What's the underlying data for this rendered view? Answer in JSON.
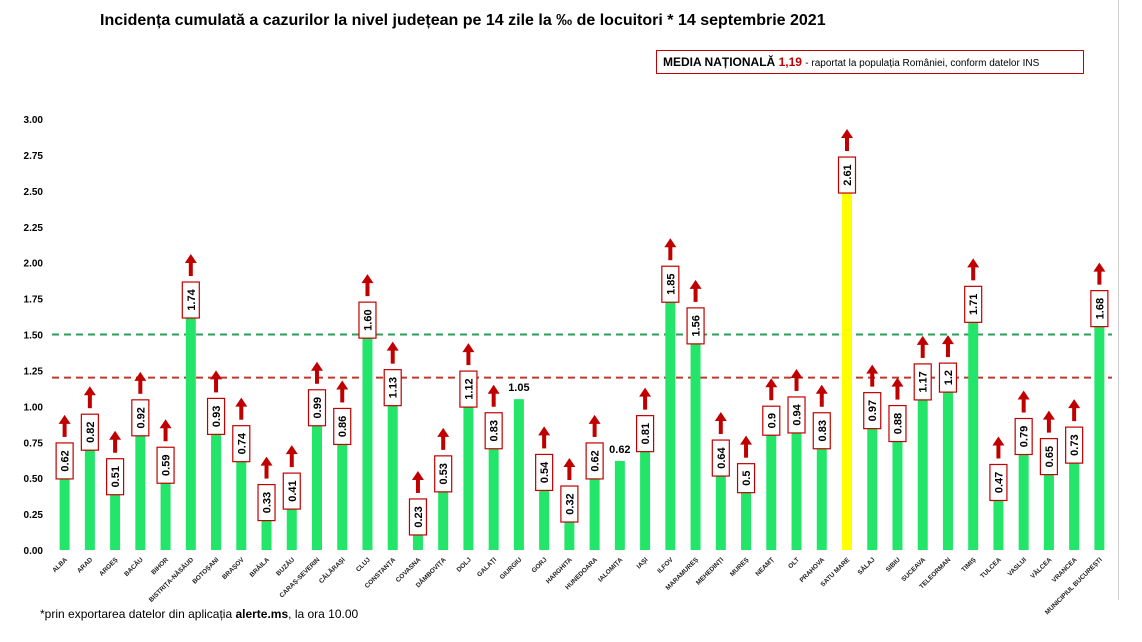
{
  "title": {
    "main": "Incidența cumulată a cazurilor la nivel județean pe 14 zile la ‰ de locuitori *",
    "date": "14 septembrie 2021"
  },
  "media_box": {
    "label": "MEDIA NAȚIONALĂ",
    "value": "1,19",
    "rest": "- raportat la populația României, conform datelor INS"
  },
  "footnote": {
    "prefix": "*prin exportarea datelor din aplicația ",
    "app": "alerte.ms",
    "suffix": ", la ora 10.00"
  },
  "colors": {
    "bar": "#22e56a",
    "highlight": "#ffff00",
    "arrow": "#c00000",
    "label_border": "#c00000",
    "green_line": "#2e9e5b",
    "red_line": "#c0392b"
  },
  "chart_data": {
    "type": "bar",
    "ylim": [
      0,
      3.0
    ],
    "yticks": [
      "0.00",
      "0.25",
      "0.50",
      "0.75",
      "1.00",
      "1.25",
      "1.50",
      "1.75",
      "2.00",
      "2.25",
      "2.50",
      "2.75",
      "3.00"
    ],
    "reference_lines": [
      {
        "value": 1.5,
        "style": "dashed",
        "color": "green"
      },
      {
        "value": 1.2,
        "style": "dashed",
        "color": "red"
      }
    ],
    "highlight_category": "SATU MARE",
    "grid": false,
    "legend": "none",
    "categories": [
      "ALBA",
      "ARAD",
      "ARGEȘ",
      "BACĂU",
      "BIHOR",
      "BISTRIȚA-NĂSĂUD",
      "BOTOȘANI",
      "BRAȘOV",
      "BRĂILA",
      "BUZĂU",
      "CARAȘ-SEVERIN",
      "CĂLĂRAȘI",
      "CLUJ",
      "CONSTANȚA",
      "COVASNA",
      "DÂMBOVIȚA",
      "DOLJ",
      "GALAȚI",
      "GIURGIU",
      "GORJ",
      "HARGHITA",
      "HUNEDOARA",
      "IALOMIȚA",
      "IAȘI",
      "ILFOV",
      "MARAMUREȘ",
      "MEHEDINȚI",
      "MUREȘ",
      "NEAMȚ",
      "OLT",
      "PRAHOVA",
      "SATU MARE",
      "SĂLAJ",
      "SIBIU",
      "SUCEAVA",
      "TELEORMAN",
      "TIMIȘ",
      "TULCEA",
      "VASLUI",
      "VÂLCEA",
      "VRANCEA",
      "MUNICIPIUL BUCUREȘTI"
    ],
    "values": [
      0.62,
      0.82,
      0.51,
      0.92,
      0.59,
      1.74,
      0.93,
      0.74,
      0.33,
      0.41,
      0.99,
      0.86,
      1.6,
      1.13,
      0.23,
      0.53,
      1.12,
      0.83,
      1.05,
      0.54,
      0.32,
      0.62,
      0.62,
      0.81,
      1.85,
      1.56,
      0.64,
      0.5,
      0.9,
      0.94,
      0.83,
      2.61,
      0.97,
      0.88,
      1.17,
      1.2,
      1.71,
      0.47,
      0.79,
      0.65,
      0.73,
      1.68
    ],
    "labels": [
      "0.62",
      "0.82",
      "0.51",
      "0.92",
      "0.59",
      "1.74",
      "0.93",
      "0.74",
      "0.33",
      "0.41",
      "0.99",
      "0.86",
      "1.60",
      "1.13",
      "0.23",
      "0.53",
      "1.12",
      "0.83",
      "1.05",
      "0.54",
      "0.32",
      "0.62",
      "0.62",
      "0.81",
      "1.85",
      "1.56",
      "0.64",
      "0.5",
      "0.9",
      "0.94",
      "0.83",
      "2.61",
      "0.97",
      "0.88",
      "1.17",
      "1.2",
      "1.71",
      "0.47",
      "0.79",
      "0.65",
      "0.73",
      "1.68"
    ],
    "boxed": [
      true,
      true,
      true,
      true,
      true,
      true,
      true,
      true,
      true,
      true,
      true,
      true,
      true,
      true,
      true,
      true,
      true,
      true,
      false,
      true,
      true,
      true,
      false,
      true,
      true,
      true,
      true,
      true,
      true,
      true,
      true,
      true,
      true,
      true,
      true,
      true,
      true,
      true,
      true,
      true,
      true,
      true
    ],
    "trend_up": [
      true,
      true,
      true,
      true,
      true,
      true,
      true,
      true,
      true,
      true,
      true,
      true,
      true,
      true,
      true,
      true,
      true,
      true,
      false,
      true,
      true,
      true,
      false,
      true,
      true,
      true,
      true,
      true,
      true,
      true,
      true,
      true,
      true,
      true,
      true,
      true,
      true,
      true,
      true,
      true,
      true,
      true
    ]
  }
}
